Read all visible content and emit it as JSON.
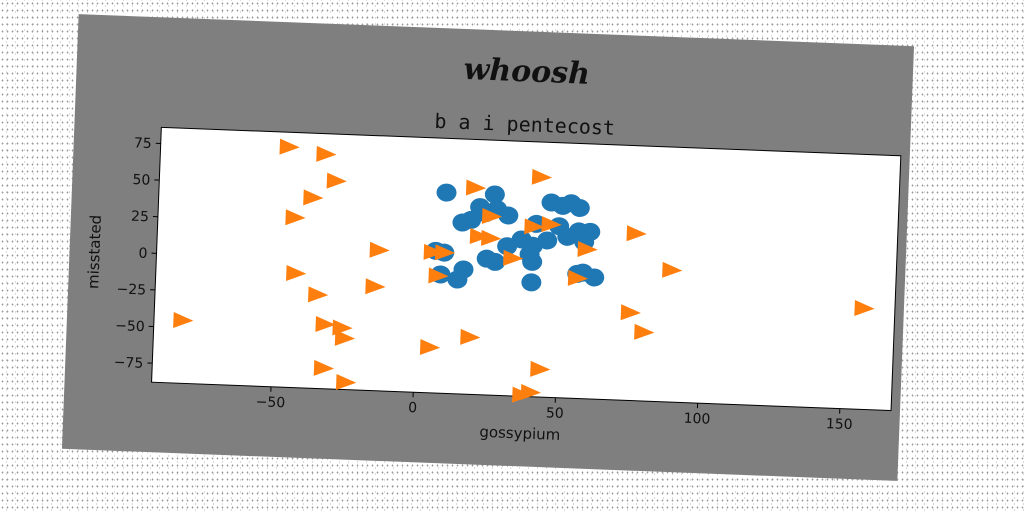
{
  "figure": {
    "suptitle": "whoosh",
    "background_color": "#7f7f7f",
    "plot_background_color": "#ffffff"
  },
  "chart_data": {
    "type": "scatter",
    "title": "b a i pentecost",
    "xlabel": "gossypium",
    "ylabel": "misstated",
    "xlim": [
      -92,
      168
    ],
    "ylim": [
      -88,
      86
    ],
    "xticks": [
      -50,
      0,
      50,
      100,
      150
    ],
    "yticks": [
      75,
      50,
      25,
      0,
      -25,
      -50,
      -75
    ],
    "xtick_labels": [
      "−50",
      "0",
      "50",
      "100",
      "150"
    ],
    "ytick_labels": [
      "75",
      "50",
      "25",
      "0",
      "−25",
      "−50",
      "−75"
    ],
    "grid": false,
    "series": [
      {
        "marker": "circle",
        "color": "#1f77b4",
        "points": [
          [
            9,
            49
          ],
          [
            26,
            49
          ],
          [
            46,
            45
          ],
          [
            53,
            45
          ],
          [
            56,
            42
          ],
          [
            50,
            43
          ],
          [
            21,
            40
          ],
          [
            27,
            39
          ],
          [
            23,
            36
          ],
          [
            18,
            31
          ],
          [
            15,
            29
          ],
          [
            31,
            35
          ],
          [
            41,
            30
          ],
          [
            49,
            29
          ],
          [
            56,
            26
          ],
          [
            60,
            26
          ],
          [
            52,
            22
          ],
          [
            45,
            19
          ],
          [
            58,
            19
          ],
          [
            36,
            19
          ],
          [
            40,
            15
          ],
          [
            31,
            14
          ],
          [
            39,
            9
          ],
          [
            9,
            8
          ],
          [
            6,
            9
          ],
          [
            24,
            5
          ],
          [
            40,
            4
          ],
          [
            27,
            3
          ],
          [
            16,
            -3
          ],
          [
            56,
            -3
          ],
          [
            58,
            -2
          ],
          [
            62,
            -5
          ],
          [
            14,
            -10
          ],
          [
            8,
            -7
          ],
          [
            40,
            -10
          ]
        ]
      },
      {
        "marker": "triangle-right",
        "color": "#ff7f0e",
        "points": [
          [
            -47,
            76
          ],
          [
            -34,
            72
          ],
          [
            -30,
            54
          ],
          [
            -38,
            42
          ],
          [
            -44,
            28
          ],
          [
            -14,
            8
          ],
          [
            -43,
            -10
          ],
          [
            -35,
            -24
          ],
          [
            -15,
            -17
          ],
          [
            -82,
            -45
          ],
          [
            -32,
            -44
          ],
          [
            -26,
            -46
          ],
          [
            -25,
            -53
          ],
          [
            -32,
            -74
          ],
          [
            -24,
            -83
          ],
          [
            5,
            -57
          ],
          [
            19,
            -49
          ],
          [
            7,
            -8
          ],
          [
            19,
            53
          ],
          [
            42,
            62
          ],
          [
            25,
            34
          ],
          [
            25,
            19
          ],
          [
            33,
            6
          ],
          [
            21,
            20
          ],
          [
            40,
            28
          ],
          [
            46,
            30
          ],
          [
            59,
            14
          ],
          [
            56,
            -6
          ],
          [
            76,
            26
          ],
          [
            89,
            2
          ],
          [
            75,
            -28
          ],
          [
            80,
            -41
          ],
          [
            157,
            -19
          ],
          [
            44,
            -69
          ],
          [
            38,
            -87
          ],
          [
            41,
            -85
          ],
          [
            9,
            8
          ],
          [
            5,
            8
          ]
        ]
      }
    ]
  }
}
